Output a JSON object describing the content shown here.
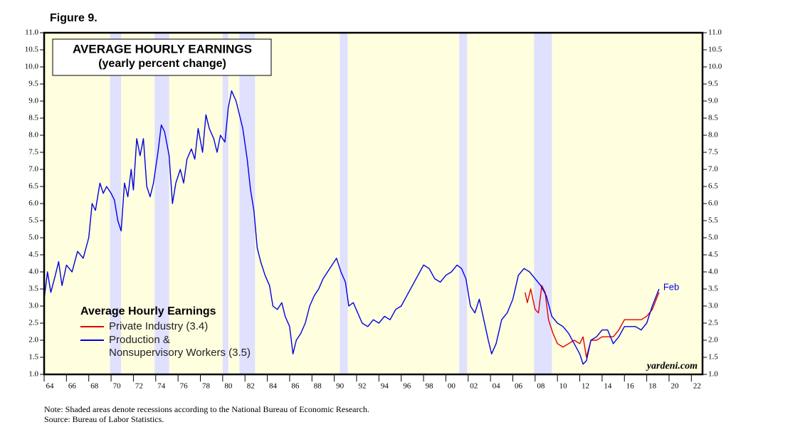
{
  "chart_data": {
    "type": "line",
    "figure_label": "Figure 9.",
    "title": "AVERAGE HOURLY EARNINGS",
    "subtitle": "(yearly percent change)",
    "legend_title": "Average Hourly Earnings",
    "annotation": "Feb",
    "watermark": "yardeni.com",
    "notes": [
      "Note: Shaded areas denote recessions according to the National Bureau of Economic Research.",
      "Source: Bureau of Labor Statistics."
    ],
    "xlim": [
      1964,
      2023
    ],
    "ylim": [
      1,
      11
    ],
    "xticks": [
      {
        "value": 1964,
        "label": "64"
      },
      {
        "value": 1966,
        "label": "66"
      },
      {
        "value": 1968,
        "label": "68"
      },
      {
        "value": 1970,
        "label": "70"
      },
      {
        "value": 1972,
        "label": "72"
      },
      {
        "value": 1974,
        "label": "74"
      },
      {
        "value": 1976,
        "label": "76"
      },
      {
        "value": 1978,
        "label": "78"
      },
      {
        "value": 1980,
        "label": "80"
      },
      {
        "value": 1982,
        "label": "82"
      },
      {
        "value": 1984,
        "label": "84"
      },
      {
        "value": 1986,
        "label": "86"
      },
      {
        "value": 1988,
        "label": "88"
      },
      {
        "value": 1990,
        "label": "90"
      },
      {
        "value": 1992,
        "label": "92"
      },
      {
        "value": 1994,
        "label": "94"
      },
      {
        "value": 1996,
        "label": "96"
      },
      {
        "value": 1998,
        "label": "98"
      },
      {
        "value": 2000,
        "label": "00"
      },
      {
        "value": 2002,
        "label": "02"
      },
      {
        "value": 2004,
        "label": "04"
      },
      {
        "value": 2006,
        "label": "06"
      },
      {
        "value": 2008,
        "label": "08"
      },
      {
        "value": 2010,
        "label": "10"
      },
      {
        "value": 2012,
        "label": "12"
      },
      {
        "value": 2014,
        "label": "14"
      },
      {
        "value": 2016,
        "label": "16"
      },
      {
        "value": 2018,
        "label": "18"
      },
      {
        "value": 2020,
        "label": "20"
      },
      {
        "value": 2022,
        "label": "22"
      }
    ],
    "yticks": [
      {
        "value": 1,
        "label": "1.0"
      },
      {
        "value": 1.5,
        "label": "1.5"
      },
      {
        "value": 2,
        "label": "2.0"
      },
      {
        "value": 2.5,
        "label": "2.5"
      },
      {
        "value": 3,
        "label": "3.0"
      },
      {
        "value": 3.5,
        "label": "3.5"
      },
      {
        "value": 4,
        "label": "4.0"
      },
      {
        "value": 4.5,
        "label": "4.5"
      },
      {
        "value": 5,
        "label": "5.0"
      },
      {
        "value": 5.5,
        "label": "5.5"
      },
      {
        "value": 6,
        "label": "6.0"
      },
      {
        "value": 6.5,
        "label": "6.5"
      },
      {
        "value": 7,
        "label": "7.0"
      },
      {
        "value": 7.5,
        "label": "7.5"
      },
      {
        "value": 8,
        "label": "8.0"
      },
      {
        "value": 8.5,
        "label": "8.5"
      },
      {
        "value": 9,
        "label": "9.0"
      },
      {
        "value": 9.5,
        "label": "9.5"
      },
      {
        "value": 10,
        "label": "10.0"
      },
      {
        "value": 10.5,
        "label": "10.5"
      },
      {
        "value": 11,
        "label": "11.0"
      }
    ],
    "recessions": [
      [
        1969.9,
        1970.9
      ],
      [
        1973.9,
        1975.2
      ],
      [
        1980.0,
        1980.5
      ],
      [
        1981.5,
        1982.9
      ],
      [
        1990.5,
        1991.2
      ],
      [
        2001.2,
        2001.9
      ],
      [
        2007.9,
        2009.5
      ]
    ],
    "recession_color": "#e0e0ff",
    "background_color": "#ffffe0",
    "series": [
      {
        "name": "Private Industry (3.4)",
        "color": "#e00000",
        "x": [
          2007.1,
          2007.3,
          2007.6,
          2008.0,
          2008.3,
          2008.6,
          2008.9,
          2009.2,
          2009.6,
          2010.0,
          2010.5,
          2011.0,
          2011.5,
          2012.0,
          2012.3,
          2012.6,
          2013.0,
          2013.5,
          2014.0,
          2014.5,
          2015.0,
          2015.5,
          2016.0,
          2016.5,
          2017.0,
          2017.5,
          2018.0,
          2018.5,
          2019.1
        ],
        "values": [
          3.4,
          3.1,
          3.5,
          2.9,
          2.8,
          3.6,
          3.4,
          2.6,
          2.2,
          1.9,
          1.8,
          1.9,
          2.0,
          1.9,
          2.1,
          1.5,
          2.0,
          2.0,
          2.1,
          2.1,
          2.1,
          2.3,
          2.6,
          2.6,
          2.6,
          2.6,
          2.7,
          2.9,
          3.4
        ]
      },
      {
        "name": "Production &\nNonsupervisory Workers (3.5)",
        "color": "#0000e0",
        "x": [
          1964.0,
          1964.3,
          1964.6,
          1965.0,
          1965.3,
          1965.6,
          1966.0,
          1966.5,
          1967.0,
          1967.5,
          1968.0,
          1968.3,
          1968.6,
          1969.0,
          1969.3,
          1969.6,
          1970.0,
          1970.3,
          1970.6,
          1970.9,
          1971.2,
          1971.5,
          1971.8,
          1972.0,
          1972.3,
          1972.6,
          1972.9,
          1973.2,
          1973.5,
          1973.8,
          1974.2,
          1974.5,
          1974.8,
          1975.2,
          1975.5,
          1975.8,
          1976.2,
          1976.5,
          1976.8,
          1977.2,
          1977.5,
          1977.8,
          1978.2,
          1978.5,
          1978.8,
          1979.2,
          1979.5,
          1979.8,
          1980.2,
          1980.5,
          1980.8,
          1981.2,
          1981.5,
          1981.8,
          1982.2,
          1982.5,
          1982.8,
          1983.1,
          1983.4,
          1983.8,
          1984.2,
          1984.5,
          1984.9,
          1985.3,
          1985.6,
          1986.0,
          1986.3,
          1986.6,
          1987.0,
          1987.4,
          1987.8,
          1988.2,
          1988.6,
          1989.0,
          1989.4,
          1989.8,
          1990.2,
          1990.6,
          1991.0,
          1991.3,
          1991.7,
          1992.1,
          1992.5,
          1993.0,
          1993.5,
          1994.0,
          1994.5,
          1995.0,
          1995.5,
          1996.0,
          1996.5,
          1997.0,
          1997.5,
          1998.0,
          1998.5,
          1999.0,
          1999.5,
          2000.0,
          2000.5,
          2001.0,
          2001.4,
          2001.8,
          2002.2,
          2002.6,
          2003.0,
          2003.4,
          2003.8,
          2004.1,
          2004.5,
          2005.0,
          2005.5,
          2006.0,
          2006.5,
          2007.0,
          2007.5,
          2008.0,
          2008.5,
          2009.0,
          2009.5,
          2010.0,
          2010.5,
          2011.0,
          2011.5,
          2012.0,
          2012.3,
          2012.6,
          2013.0,
          2013.5,
          2014.0,
          2014.5,
          2015.0,
          2015.5,
          2016.0,
          2016.5,
          2017.0,
          2017.5,
          2018.0,
          2018.5,
          2019.1
        ],
        "values": [
          3.2,
          4.0,
          3.4,
          3.9,
          4.3,
          3.6,
          4.2,
          4.0,
          4.6,
          4.4,
          5.0,
          6.0,
          5.8,
          6.6,
          6.3,
          6.5,
          6.3,
          6.1,
          5.5,
          5.2,
          6.6,
          6.2,
          7.0,
          6.4,
          7.9,
          7.4,
          7.9,
          6.5,
          6.2,
          6.6,
          7.5,
          8.3,
          8.1,
          7.4,
          6.0,
          6.6,
          7.0,
          6.6,
          7.3,
          7.6,
          7.3,
          8.2,
          7.5,
          8.6,
          8.2,
          7.9,
          7.5,
          8.0,
          7.8,
          8.8,
          9.3,
          9.0,
          8.6,
          8.2,
          7.3,
          6.4,
          5.8,
          4.7,
          4.3,
          3.9,
          3.6,
          3.0,
          2.9,
          3.1,
          2.7,
          2.4,
          1.6,
          2.0,
          2.2,
          2.5,
          3.0,
          3.3,
          3.5,
          3.8,
          4.0,
          4.2,
          4.4,
          4.0,
          3.7,
          3.0,
          3.1,
          2.8,
          2.5,
          2.4,
          2.6,
          2.5,
          2.7,
          2.6,
          2.9,
          3.0,
          3.3,
          3.6,
          3.9,
          4.2,
          4.1,
          3.8,
          3.7,
          3.9,
          4.0,
          4.2,
          4.1,
          3.8,
          3.0,
          2.8,
          3.2,
          2.6,
          2.0,
          1.6,
          1.9,
          2.6,
          2.8,
          3.2,
          3.9,
          4.1,
          4.0,
          3.8,
          3.6,
          3.3,
          2.7,
          2.5,
          2.4,
          2.2,
          1.9,
          1.6,
          1.3,
          1.4,
          2.0,
          2.1,
          2.3,
          2.3,
          1.9,
          2.1,
          2.4,
          2.4,
          2.4,
          2.3,
          2.5,
          3.0,
          3.5
        ]
      }
    ]
  }
}
